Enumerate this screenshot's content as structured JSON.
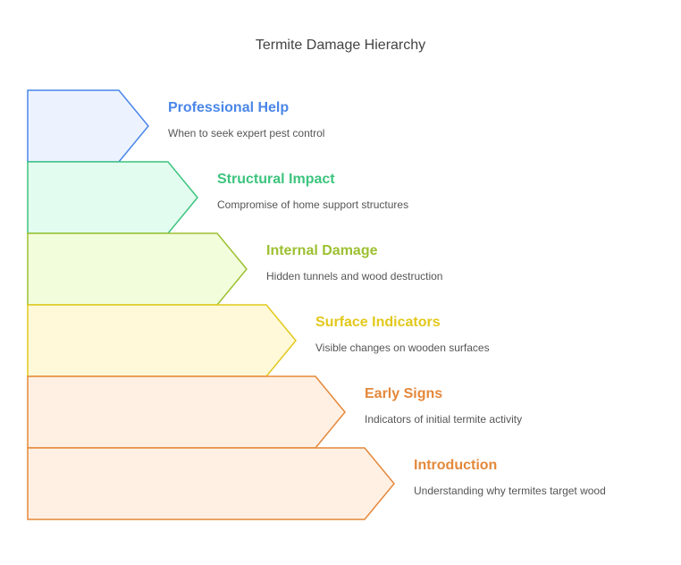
{
  "title": "Termite Damage Hierarchy",
  "levels": [
    {
      "heading": "Professional Help",
      "description": "When to seek expert pest control",
      "stroke": "#4a86e8",
      "fill": "#ecf3ff"
    },
    {
      "heading": "Structural Impact",
      "description": "Compromise of home support structures",
      "stroke": "#3dc47e",
      "fill": "#e2fcef"
    },
    {
      "heading": "Internal Damage",
      "description": "Hidden tunnels and wood destruction",
      "stroke": "#9cc031",
      "fill": "#f2fddc"
    },
    {
      "heading": "Surface Indicators",
      "description": "Visible changes on wooden surfaces",
      "stroke": "#e2c81c",
      "fill": "#fff9d9"
    },
    {
      "heading": "Early Signs",
      "description": "Indicators of initial termite activity",
      "stroke": "#e4883a",
      "fill": "#fff0e3"
    },
    {
      "heading": "Introduction",
      "description": "Understanding why termites target wood",
      "stroke": "#e4883a",
      "fill": "#fff0e3"
    }
  ]
}
